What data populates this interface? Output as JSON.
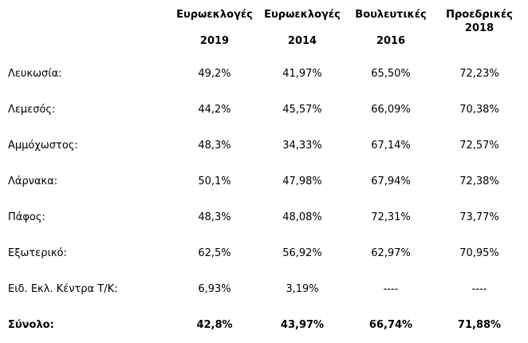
{
  "columns": [
    {
      "line1": "Ευρωεκλογές",
      "line2": "2019"
    },
    {
      "line1": "Ευρωεκλογές",
      "line2": "2014"
    },
    {
      "line1": "Βουλευτικές",
      "line2": "2016"
    },
    {
      "line1": "Προεδρικές",
      "line2": "2018"
    }
  ],
  "rows": [
    {
      "label": "Λευκωσία:",
      "values": [
        "49,2%",
        "41,97%",
        "65,50%",
        "72,23%"
      ]
    },
    {
      "label": "Λεμεσός:",
      "values": [
        "44,2%",
        "45,57%",
        "66,09%",
        "70,38%"
      ]
    },
    {
      "label": "Αμμόχωστος:",
      "values": [
        "48,3%",
        "34,33%",
        "67,14%",
        "72,57%"
      ]
    },
    {
      "label": "Λάρνακα:",
      "values": [
        "50,1%",
        "47,98%",
        "67,94%",
        "72,38%"
      ]
    },
    {
      "label": "Πάφος:",
      "values": [
        "48,3%",
        "48,08%",
        "72,31%",
        "73,77%"
      ]
    },
    {
      "label": "Εξωτερικό:",
      "values": [
        "62,5%",
        "56,92%",
        "62,97%",
        "70,95%"
      ]
    },
    {
      "label": "Ειδ. Εκλ. Κέντρα Τ/Κ:",
      "values": [
        "6,93%",
        "3,19%",
        "----",
        "----"
      ]
    }
  ],
  "total": {
    "label": "Σύνολο:",
    "values": [
      "42,8%",
      "43,97%",
      "66,74%",
      "71,88%"
    ]
  }
}
